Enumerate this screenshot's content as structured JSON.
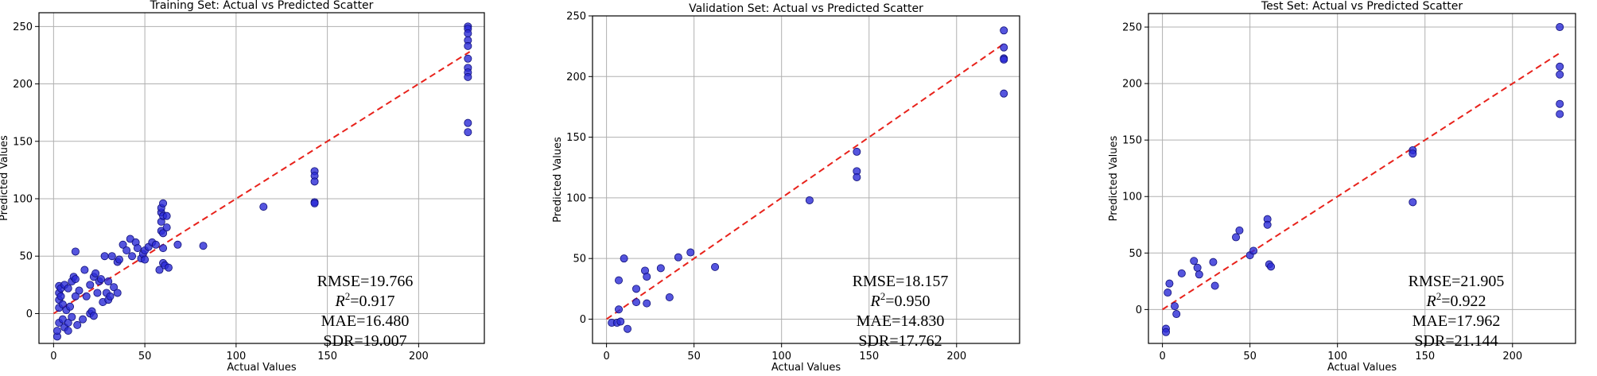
{
  "chart_data": [
    {
      "type": "scatter",
      "title": "Training Set: Actual vs Predicted Scatter",
      "xlabel": "Actual Values",
      "ylabel": "Predicted Values",
      "xlim": [
        -8,
        236
      ],
      "ylim": [
        -26,
        262
      ],
      "xticks": [
        0,
        50,
        100,
        150,
        200
      ],
      "yticks": [
        0,
        50,
        100,
        150,
        200,
        250
      ],
      "grid": true,
      "fit_line": {
        "x": [
          0,
          228
        ],
        "y": [
          0,
          228
        ]
      },
      "metrics": {
        "rmse": "19.766",
        "r2": "0.917",
        "mae": "16.480",
        "sdr": "19.007"
      },
      "points": [
        [
          2,
          -20
        ],
        [
          2,
          -15
        ],
        [
          3,
          -8
        ],
        [
          3,
          5
        ],
        [
          3,
          12
        ],
        [
          3,
          18
        ],
        [
          3,
          24
        ],
        [
          4,
          22
        ],
        [
          4,
          15
        ],
        [
          5,
          -5
        ],
        [
          5,
          8
        ],
        [
          6,
          -12
        ],
        [
          6,
          25
        ],
        [
          7,
          3
        ],
        [
          8,
          -15
        ],
        [
          8,
          -8
        ],
        [
          8,
          22
        ],
        [
          9,
          6
        ],
        [
          10,
          -3
        ],
        [
          10,
          28
        ],
        [
          11,
          32
        ],
        [
          12,
          30
        ],
        [
          12,
          15
        ],
        [
          13,
          -10
        ],
        [
          12,
          54
        ],
        [
          14,
          20
        ],
        [
          16,
          -5
        ],
        [
          17,
          38
        ],
        [
          18,
          15
        ],
        [
          20,
          25
        ],
        [
          20,
          0
        ],
        [
          21,
          2
        ],
        [
          22,
          32
        ],
        [
          22,
          -2
        ],
        [
          23,
          35
        ],
        [
          24,
          18
        ],
        [
          25,
          28
        ],
        [
          26,
          30
        ],
        [
          27,
          10
        ],
        [
          28,
          50
        ],
        [
          29,
          18
        ],
        [
          30,
          12
        ],
        [
          30,
          28
        ],
        [
          31,
          15
        ],
        [
          32,
          50
        ],
        [
          33,
          23
        ],
        [
          35,
          45
        ],
        [
          35,
          18
        ],
        [
          36,
          47
        ],
        [
          38,
          60
        ],
        [
          40,
          55
        ],
        [
          42,
          65
        ],
        [
          43,
          50
        ],
        [
          45,
          62
        ],
        [
          46,
          57
        ],
        [
          48,
          48
        ],
        [
          49,
          52
        ],
        [
          50,
          55
        ],
        [
          50,
          47
        ],
        [
          52,
          58
        ],
        [
          54,
          62
        ],
        [
          56,
          60
        ],
        [
          58,
          38
        ],
        [
          59,
          72
        ],
        [
          59,
          80
        ],
        [
          59,
          88
        ],
        [
          59,
          92
        ],
        [
          60,
          96
        ],
        [
          60,
          85
        ],
        [
          60,
          70
        ],
        [
          60,
          57
        ],
        [
          60,
          44
        ],
        [
          61,
          42
        ],
        [
          62,
          75
        ],
        [
          62,
          85
        ],
        [
          63,
          40
        ],
        [
          68,
          60
        ],
        [
          82,
          59
        ],
        [
          115,
          93
        ],
        [
          143,
          124
        ],
        [
          143,
          120
        ],
        [
          143,
          115
        ],
        [
          143,
          97
        ],
        [
          143,
          96
        ],
        [
          227,
          250
        ],
        [
          227,
          248
        ],
        [
          227,
          244
        ],
        [
          227,
          238
        ],
        [
          227,
          233
        ],
        [
          227,
          222
        ],
        [
          227,
          214
        ],
        [
          227,
          210
        ],
        [
          227,
          206
        ],
        [
          227,
          166
        ],
        [
          227,
          158
        ]
      ]
    },
    {
      "type": "scatter",
      "title": "Validation Set: Actual vs Predicted Scatter",
      "xlabel": "Actual Values",
      "ylabel": "Predicted Values",
      "xlim": [
        -8,
        236
      ],
      "ylim": [
        -20,
        250
      ],
      "xticks": [
        0,
        50,
        100,
        150,
        200
      ],
      "yticks": [
        0,
        50,
        100,
        150,
        200,
        250
      ],
      "grid": true,
      "fit_line": {
        "x": [
          0,
          228
        ],
        "y": [
          0,
          228
        ]
      },
      "metrics": {
        "rmse": "18.157",
        "r2": "0.950",
        "mae": "14.830",
        "sdr": "17.762"
      },
      "points": [
        [
          3,
          -3
        ],
        [
          6,
          -3
        ],
        [
          7,
          8
        ],
        [
          7,
          32
        ],
        [
          8,
          -2
        ],
        [
          10,
          50
        ],
        [
          12,
          -8
        ],
        [
          17,
          25
        ],
        [
          17,
          14
        ],
        [
          22,
          40
        ],
        [
          23,
          35
        ],
        [
          23,
          13
        ],
        [
          31,
          42
        ],
        [
          36,
          18
        ],
        [
          41,
          51
        ],
        [
          48,
          55
        ],
        [
          62,
          43
        ],
        [
          116,
          98
        ],
        [
          143,
          138
        ],
        [
          143,
          122
        ],
        [
          143,
          117
        ],
        [
          227,
          238
        ],
        [
          227,
          224
        ],
        [
          227,
          215
        ],
        [
          227,
          214
        ],
        [
          227,
          186
        ]
      ]
    },
    {
      "type": "scatter",
      "title": "Test Set: Actual vs Predicted Scatter",
      "xlabel": "Actual Values",
      "ylabel": "Predicted Values",
      "xlim": [
        -8,
        236
      ],
      "ylim": [
        -30,
        262
      ],
      "xticks": [
        0,
        50,
        100,
        150,
        200
      ],
      "yticks": [
        0,
        50,
        100,
        150,
        200,
        250
      ],
      "grid": true,
      "fit_line": {
        "x": [
          0,
          228
        ],
        "y": [
          0,
          228
        ]
      },
      "metrics": {
        "rmse": "21.905",
        "r2": "0.922",
        "mae": "17.962",
        "sdr": "21.144"
      },
      "points": [
        [
          2,
          -17
        ],
        [
          2,
          -20
        ],
        [
          3,
          15
        ],
        [
          4,
          23
        ],
        [
          7,
          3
        ],
        [
          8,
          -4
        ],
        [
          11,
          32
        ],
        [
          18,
          43
        ],
        [
          20,
          37
        ],
        [
          21,
          31
        ],
        [
          29,
          42
        ],
        [
          30,
          21
        ],
        [
          42,
          64
        ],
        [
          44,
          70
        ],
        [
          50,
          48
        ],
        [
          52,
          52
        ],
        [
          60,
          80
        ],
        [
          60,
          75
        ],
        [
          61,
          40
        ],
        [
          62,
          38
        ],
        [
          143,
          141
        ],
        [
          143,
          138
        ],
        [
          143,
          95
        ],
        [
          227,
          250
        ],
        [
          227,
          215
        ],
        [
          227,
          208
        ],
        [
          227,
          182
        ],
        [
          227,
          173
        ]
      ]
    }
  ]
}
